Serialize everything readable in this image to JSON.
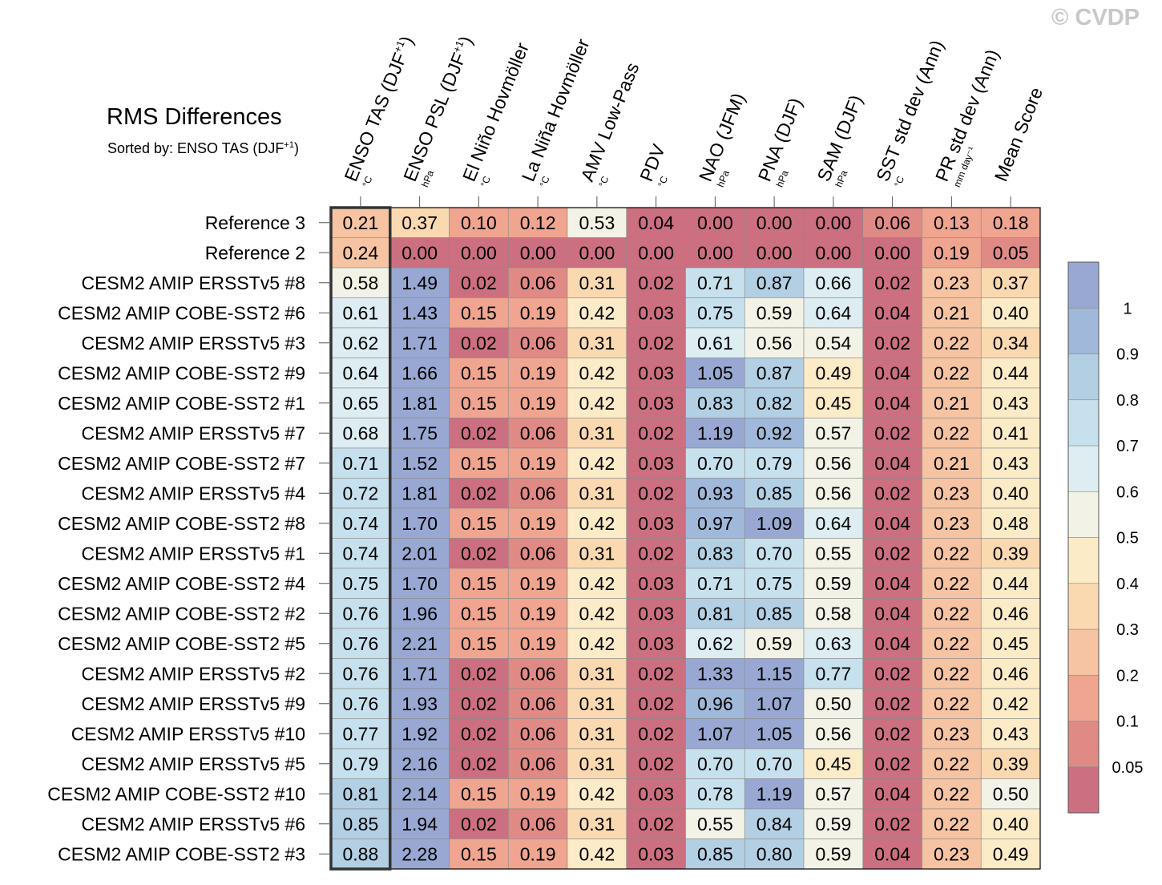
{
  "watermark": "© CVDP",
  "title": "RMS Differences",
  "subtitle": {
    "text": "Sorted by: ENSO TAS (DJF",
    "sup": "+1",
    "close": ")"
  },
  "chart_data": {
    "type": "heatmap",
    "title": "RMS Differences",
    "sorted_by": "ENSO TAS (DJF+1)",
    "highlight_column": 0,
    "columns": [
      {
        "title": "ENSO TAS (DJF",
        "sup": "+1",
        "close": ")",
        "unit": "°C"
      },
      {
        "title": "ENSO PSL (DJF",
        "sup": "+1",
        "close": ")",
        "unit": "hPa"
      },
      {
        "title": "El Niño Hovmöller",
        "unit": "°C"
      },
      {
        "title": "La Niña Hovmöller",
        "unit": "°C"
      },
      {
        "title": "AMV Low-Pass",
        "unit": "°C"
      },
      {
        "title": "PDV",
        "unit": "°C"
      },
      {
        "title": "NAO (JFM)",
        "unit": "hPa"
      },
      {
        "title": "PNA (DJF)",
        "unit": "hPa"
      },
      {
        "title": "SAM (DJF)",
        "unit": "hPa"
      },
      {
        "title": "SST std dev (Ann)",
        "unit": "°C"
      },
      {
        "title": "PR std dev (Ann)",
        "unit": "mm day⁻¹"
      },
      {
        "title": "Mean Score",
        "unit": ""
      }
    ],
    "rows": [
      {
        "label": "Reference 3",
        "values": [
          "0.21",
          "0.37",
          "0.10",
          "0.12",
          "0.53",
          "0.04",
          "0.00",
          "0.00",
          "0.00",
          "0.06",
          "0.13",
          "0.18"
        ]
      },
      {
        "label": "Reference 2",
        "values": [
          "0.24",
          "0.00",
          "0.00",
          "0.00",
          "0.00",
          "0.00",
          "0.00",
          "0.00",
          "0.00",
          "0.00",
          "0.19",
          "0.05"
        ]
      },
      {
        "label": "CESM2 AMIP ERSSTv5 #8",
        "values": [
          "0.58",
          "1.49",
          "0.02",
          "0.06",
          "0.31",
          "0.02",
          "0.71",
          "0.87",
          "0.66",
          "0.02",
          "0.23",
          "0.37"
        ]
      },
      {
        "label": "CESM2 AMIP COBE-SST2 #6",
        "values": [
          "0.61",
          "1.43",
          "0.15",
          "0.19",
          "0.42",
          "0.03",
          "0.75",
          "0.59",
          "0.64",
          "0.04",
          "0.21",
          "0.40"
        ]
      },
      {
        "label": "CESM2 AMIP ERSSTv5 #3",
        "values": [
          "0.62",
          "1.71",
          "0.02",
          "0.06",
          "0.31",
          "0.02",
          "0.61",
          "0.56",
          "0.54",
          "0.02",
          "0.22",
          "0.34"
        ]
      },
      {
        "label": "CESM2 AMIP COBE-SST2 #9",
        "values": [
          "0.64",
          "1.66",
          "0.15",
          "0.19",
          "0.42",
          "0.03",
          "1.05",
          "0.87",
          "0.49",
          "0.04",
          "0.22",
          "0.44"
        ]
      },
      {
        "label": "CESM2 AMIP COBE-SST2 #1",
        "values": [
          "0.65",
          "1.81",
          "0.15",
          "0.19",
          "0.42",
          "0.03",
          "0.83",
          "0.82",
          "0.45",
          "0.04",
          "0.21",
          "0.43"
        ]
      },
      {
        "label": "CESM2 AMIP ERSSTv5 #7",
        "values": [
          "0.68",
          "1.75",
          "0.02",
          "0.06",
          "0.31",
          "0.02",
          "1.19",
          "0.92",
          "0.57",
          "0.02",
          "0.22",
          "0.41"
        ]
      },
      {
        "label": "CESM2 AMIP COBE-SST2 #7",
        "values": [
          "0.71",
          "1.52",
          "0.15",
          "0.19",
          "0.42",
          "0.03",
          "0.70",
          "0.79",
          "0.56",
          "0.04",
          "0.21",
          "0.43"
        ]
      },
      {
        "label": "CESM2 AMIP ERSSTv5 #4",
        "values": [
          "0.72",
          "1.81",
          "0.02",
          "0.06",
          "0.31",
          "0.02",
          "0.93",
          "0.85",
          "0.56",
          "0.02",
          "0.23",
          "0.40"
        ]
      },
      {
        "label": "CESM2 AMIP COBE-SST2 #8",
        "values": [
          "0.74",
          "1.70",
          "0.15",
          "0.19",
          "0.42",
          "0.03",
          "0.97",
          "1.09",
          "0.64",
          "0.04",
          "0.23",
          "0.48"
        ]
      },
      {
        "label": "CESM2 AMIP ERSSTv5 #1",
        "values": [
          "0.74",
          "2.01",
          "0.02",
          "0.06",
          "0.31",
          "0.02",
          "0.83",
          "0.70",
          "0.55",
          "0.02",
          "0.22",
          "0.39"
        ]
      },
      {
        "label": "CESM2 AMIP COBE-SST2 #4",
        "values": [
          "0.75",
          "1.70",
          "0.15",
          "0.19",
          "0.42",
          "0.03",
          "0.71",
          "0.75",
          "0.59",
          "0.04",
          "0.22",
          "0.44"
        ]
      },
      {
        "label": "CESM2 AMIP COBE-SST2 #2",
        "values": [
          "0.76",
          "1.96",
          "0.15",
          "0.19",
          "0.42",
          "0.03",
          "0.81",
          "0.85",
          "0.58",
          "0.04",
          "0.22",
          "0.46"
        ]
      },
      {
        "label": "CESM2 AMIP COBE-SST2 #5",
        "values": [
          "0.76",
          "2.21",
          "0.15",
          "0.19",
          "0.42",
          "0.03",
          "0.62",
          "0.59",
          "0.63",
          "0.04",
          "0.22",
          "0.45"
        ]
      },
      {
        "label": "CESM2 AMIP ERSSTv5 #2",
        "values": [
          "0.76",
          "1.71",
          "0.02",
          "0.06",
          "0.31",
          "0.02",
          "1.33",
          "1.15",
          "0.77",
          "0.02",
          "0.22",
          "0.46"
        ]
      },
      {
        "label": "CESM2 AMIP ERSSTv5 #9",
        "values": [
          "0.76",
          "1.93",
          "0.02",
          "0.06",
          "0.31",
          "0.02",
          "0.96",
          "1.07",
          "0.50",
          "0.02",
          "0.22",
          "0.42"
        ]
      },
      {
        "label": "CESM2 AMIP ERSSTv5 #10",
        "values": [
          "0.77",
          "1.92",
          "0.02",
          "0.06",
          "0.31",
          "0.02",
          "1.07",
          "1.05",
          "0.56",
          "0.02",
          "0.23",
          "0.43"
        ]
      },
      {
        "label": "CESM2 AMIP ERSSTv5 #5",
        "values": [
          "0.79",
          "2.16",
          "0.02",
          "0.06",
          "0.31",
          "0.02",
          "0.70",
          "0.70",
          "0.45",
          "0.02",
          "0.22",
          "0.39"
        ]
      },
      {
        "label": "CESM2 AMIP COBE-SST2 #10",
        "values": [
          "0.81",
          "2.14",
          "0.15",
          "0.19",
          "0.42",
          "0.03",
          "0.78",
          "1.19",
          "0.57",
          "0.04",
          "0.22",
          "0.50"
        ]
      },
      {
        "label": "CESM2 AMIP ERSSTv5 #6",
        "values": [
          "0.85",
          "1.94",
          "0.02",
          "0.06",
          "0.31",
          "0.02",
          "0.55",
          "0.84",
          "0.59",
          "0.02",
          "0.22",
          "0.40"
        ]
      },
      {
        "label": "CESM2 AMIP COBE-SST2 #3",
        "values": [
          "0.88",
          "2.28",
          "0.15",
          "0.19",
          "0.42",
          "0.03",
          "0.85",
          "0.80",
          "0.59",
          "0.04",
          "0.23",
          "0.49"
        ]
      }
    ],
    "colorbar": {
      "levels": [
        0.05,
        0.1,
        0.2,
        0.3,
        0.4,
        0.5,
        0.6,
        0.7,
        0.8,
        0.9,
        1
      ],
      "labels": [
        "0.05",
        "0.1",
        "0.2",
        "0.3",
        "0.4",
        "0.5",
        "0.6",
        "0.7",
        "0.8",
        "0.9",
        "1"
      ],
      "colors": [
        "#cc6f80",
        "#e08a86",
        "#efa58f",
        "#f6c4a2",
        "#fad9b1",
        "#fbebc7",
        "#f2f2e6",
        "#ddedf2",
        "#c7e0ed",
        "#b3cfe4",
        "#a0b8d9",
        "#98a8d2"
      ]
    }
  }
}
